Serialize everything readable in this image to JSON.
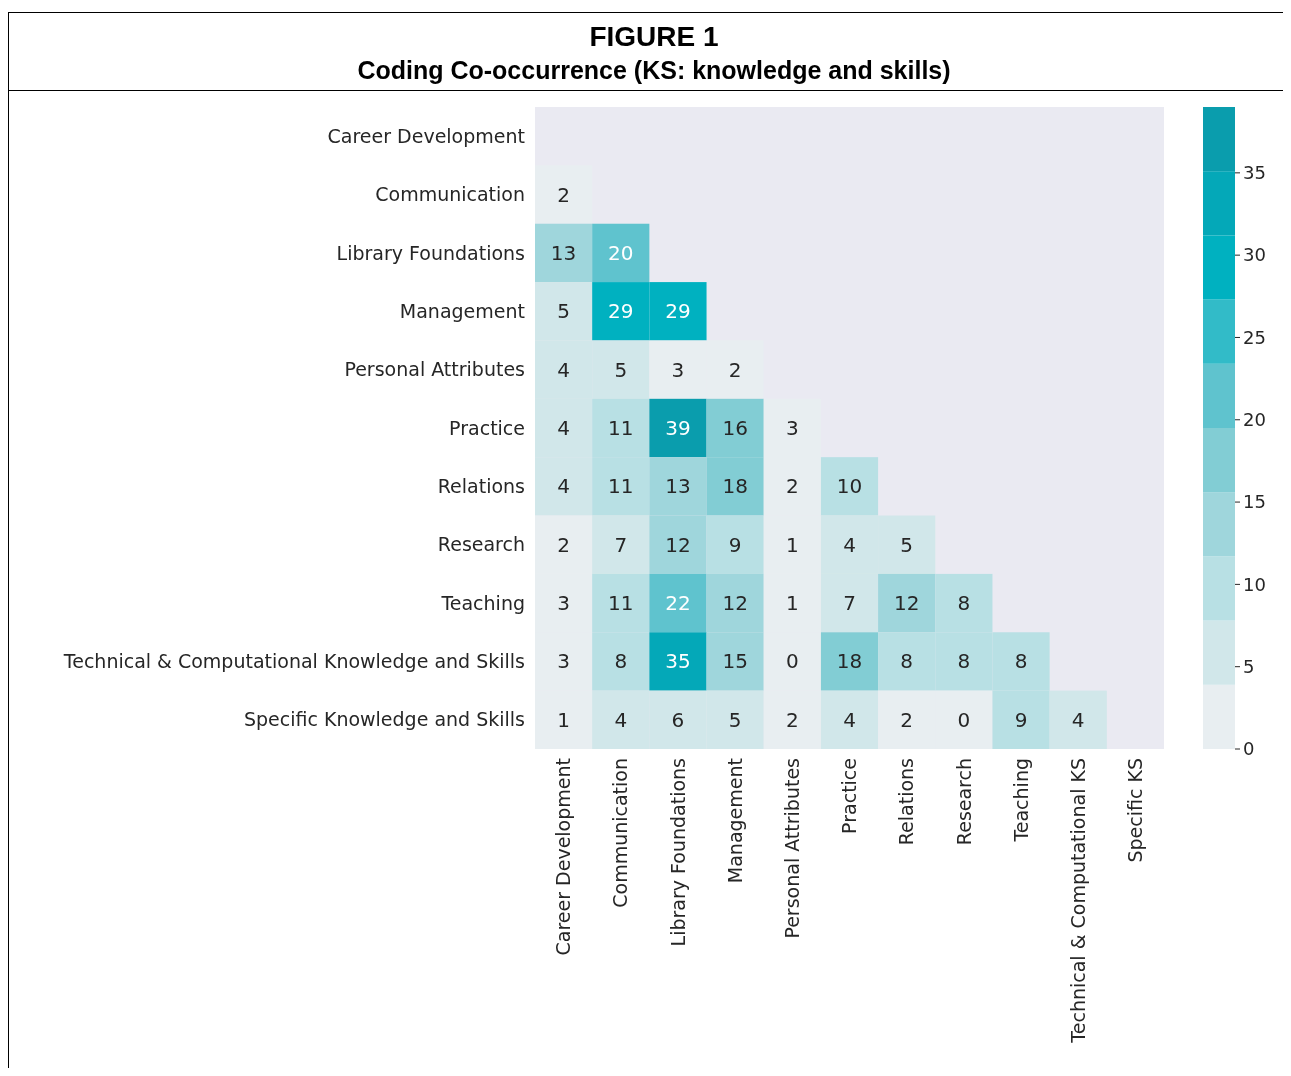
{
  "chart_data": {
    "type": "heatmap",
    "title": "FIGURE 1",
    "subtitle": "Coding Co-occurrence (KS: knowledge and skills)",
    "categories": [
      "Career Development",
      "Communication",
      "Library Foundations",
      "Management",
      "Personal Attributes",
      "Practice",
      "Relations",
      "Research",
      "Teaching",
      "Technical & Computational KS",
      "Specific KS"
    ],
    "y_categories": [
      "Career Development",
      "Communication",
      "Library Foundations",
      "Management",
      "Personal Attributes",
      "Practice",
      "Relations",
      "Research",
      "Teaching",
      "Technical & Computational Knowledge and Skills",
      "Specific Knowledge and Skills"
    ],
    "cells": [
      [
        null,
        null,
        null,
        null,
        null,
        null,
        null,
        null,
        null,
        null,
        null
      ],
      [
        2,
        null,
        null,
        null,
        null,
        null,
        null,
        null,
        null,
        null,
        null
      ],
      [
        13,
        20,
        null,
        null,
        null,
        null,
        null,
        null,
        null,
        null,
        null
      ],
      [
        5,
        29,
        29,
        null,
        null,
        null,
        null,
        null,
        null,
        null,
        null
      ],
      [
        4,
        5,
        3,
        2,
        null,
        null,
        null,
        null,
        null,
        null,
        null
      ],
      [
        4,
        11,
        39,
        16,
        3,
        null,
        null,
        null,
        null,
        null,
        null
      ],
      [
        4,
        11,
        13,
        18,
        2,
        10,
        null,
        null,
        null,
        null,
        null
      ],
      [
        2,
        7,
        12,
        9,
        1,
        4,
        5,
        null,
        null,
        null,
        null
      ],
      [
        3,
        11,
        22,
        12,
        1,
        7,
        12,
        8,
        null,
        null,
        null
      ],
      [
        3,
        8,
        35,
        15,
        0,
        18,
        8,
        8,
        8,
        null,
        null
      ],
      [
        1,
        4,
        6,
        5,
        2,
        4,
        2,
        0,
        9,
        4,
        null
      ]
    ],
    "clim": [
      0,
      39
    ],
    "cticks": [
      0,
      5,
      10,
      15,
      20,
      25,
      30,
      35
    ],
    "data_labels": true
  }
}
